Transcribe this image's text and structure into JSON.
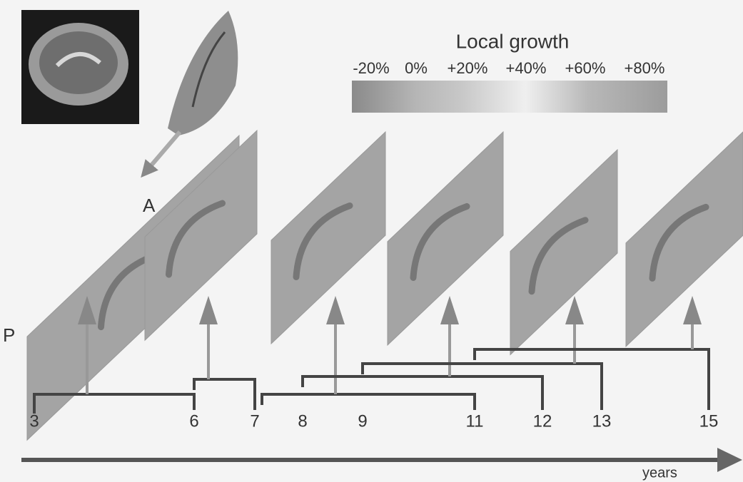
{
  "colorbar": {
    "title": "Local growth",
    "labels": [
      "-20%",
      "0%",
      "+20%",
      "+40%",
      "+60%",
      "+80%"
    ]
  },
  "orientation": {
    "anterior": "A",
    "posterior": "P"
  },
  "timeline": {
    "ticks": [
      "3",
      "6",
      "7",
      "8",
      "9",
      "11",
      "12",
      "13",
      "15"
    ],
    "axis_label": "years"
  }
}
